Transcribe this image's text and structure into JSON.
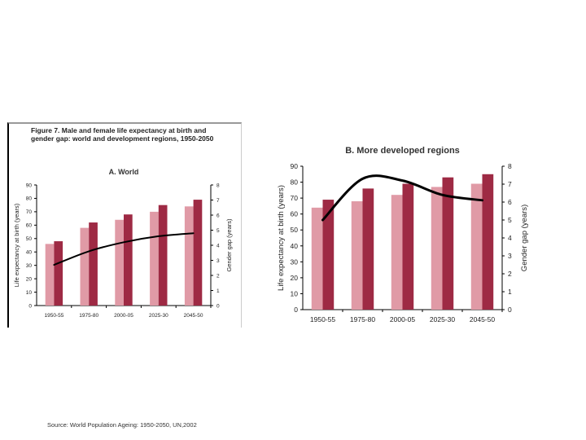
{
  "figure": {
    "title_line1": "Figure 7.  Male and female life expectancy at birth and",
    "title_line2": "gender gap: world and development regions, 1950-2050"
  },
  "source": "Source: World Population Ageing:  1950-2050, UN,2002",
  "colors": {
    "female_bar": "#e09aa6",
    "male_bar": "#9e2a44",
    "gap_line": "#000000"
  },
  "chart_data": [
    {
      "type": "bar",
      "title": "A. World",
      "categories": [
        "1950-55",
        "1975-80",
        "2000-05",
        "2025-30",
        "2045-50"
      ],
      "series": [
        {
          "kind": "bar",
          "values": [
            46,
            58,
            64,
            70,
            74
          ]
        },
        {
          "kind": "bar",
          "values": [
            48,
            62,
            68,
            75,
            79
          ]
        },
        {
          "kind": "line",
          "axis": "right",
          "values": [
            2.7,
            3.6,
            4.2,
            4.6,
            4.8
          ]
        }
      ],
      "ylabel": "Life expectancy at birth (years)",
      "y2label": "Gender gap (years)",
      "ylim": [
        0,
        90
      ],
      "y2lim": [
        0,
        8
      ],
      "yticks": [
        0,
        10,
        20,
        30,
        40,
        50,
        60,
        70,
        80,
        90
      ],
      "y2ticks": [
        0,
        1,
        2,
        3,
        4,
        5,
        6,
        7,
        8
      ]
    },
    {
      "type": "bar",
      "title": "B. More developed regions",
      "categories": [
        "1950-55",
        "1975-80",
        "2000-05",
        "2025-30",
        "2045-50"
      ],
      "series": [
        {
          "kind": "bar",
          "values": [
            64,
            68,
            72,
            77,
            79
          ]
        },
        {
          "kind": "bar",
          "values": [
            69,
            76,
            79,
            83,
            85
          ]
        },
        {
          "kind": "line",
          "axis": "right",
          "values": [
            5.0,
            7.3,
            7.2,
            6.4,
            6.1
          ]
        }
      ],
      "ylabel": "Life expectancy at birth (years)",
      "y2label": "Gender gap (years)",
      "ylim": [
        0,
        90
      ],
      "y2lim": [
        0,
        8
      ],
      "yticks": [
        0,
        10,
        20,
        30,
        40,
        50,
        60,
        70,
        80,
        90
      ],
      "y2ticks": [
        0,
        1,
        2,
        3,
        4,
        5,
        6,
        7,
        8
      ]
    }
  ]
}
